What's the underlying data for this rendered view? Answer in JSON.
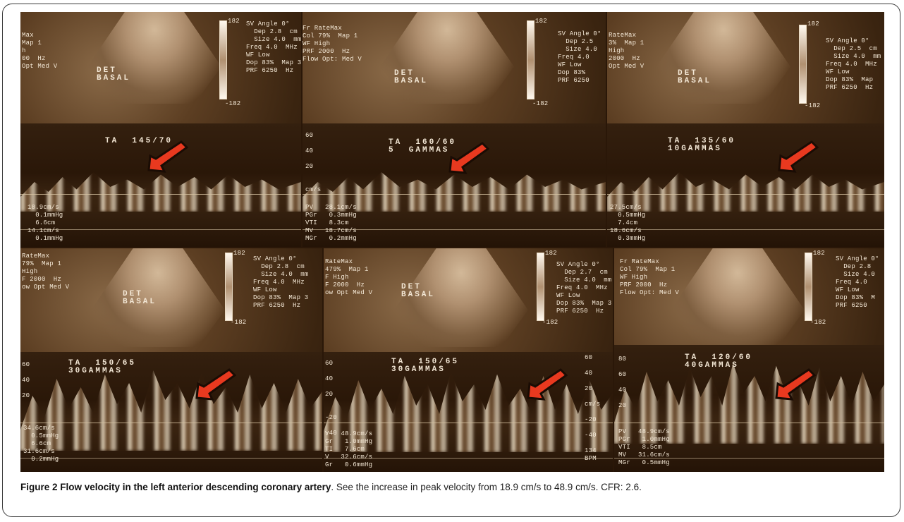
{
  "figure": {
    "caption_label": "Figure 2",
    "caption_title": "Flow velocity in the left anterior descending coronary artery",
    "caption_text": ". See the increase in peak velocity from 18.9 cm/s to 48.9 cm/s. CFR: 2.6."
  },
  "panels": [
    {
      "header_left": "Max\nMap 1\nh\n00  Hz\nOpt Med V",
      "header_right": "SV Angle 0°\n  Dep 2.8  cm\n  Size 4.0  mm\nFreq 4.0  MHz\nWF Low\nDop 83%  Map 3\nPRF 6250  Hz",
      "scale_top": "182",
      "scale_bottom": "-182",
      "sector_label": "DET\nBASAL",
      "ta_label": "TA  145/70",
      "meas": "18.9cm/s\n  0.1mmHg\n  6.6cm\n14.1cm/s\n  0.1mmHg",
      "axis_left": "",
      "axis_right": ""
    },
    {
      "header_left": "Fr RateMax\nCol 79%  Map 1\nWF High\nPRF 2000  Hz\nFlow Opt: Med V",
      "header_right": "SV Angle 0°\n  Dep 2.5\n  Size 4.0\nFreq 4.0\nWF Low\nDop 83%\nPRF 6250",
      "scale_top": "182",
      "scale_bottom": "-182",
      "sector_label": "DET\nBASAL",
      "ta_label": "TA  160/60\n5  GAMMAS",
      "meas": "PV   28.1cm/s\nPGr   0.3mmHg\nVTI   8.3cm\nMV   18.7cm/s\nMGr   0.2mmHg",
      "axis_left": "60\n\n40\n\n20\n\n\ncm/s",
      "axis_right": ""
    },
    {
      "header_left": "RateMax\n3%  Map 1\nHigh\n2000  Hz\nOpt Med V",
      "header_right": "SV Angle 0°\n  Dep 2.5  cm\n  Size 4.0  mm\nFreq 4.0  MHz\nWF Low\nDop 83%  Map\nPRF 6250  Hz",
      "scale_top": "182",
      "scale_bottom": "-182",
      "sector_label": "DET\nBASAL",
      "ta_label": "TA  135/60\n10GAMMAS",
      "meas": "27.5cm/s\n  0.5mmHg\n  7.4cm\n18.6cm/s\n  0.3mmHg",
      "axis_left": "",
      "axis_right": ""
    },
    {
      "header_left": "RateMax\n79%  Map 1\nHigh\nF 2000  Hz\now Opt Med V",
      "header_right": "SV Angle 0°\n  Dep 2.8  cm\n  Size 4.0  mm\nFreq 4.0  MHz\nWF Low\nDop 83%  Map 3\nPRF 6250  Hz",
      "scale_top": "182",
      "scale_bottom": "-182",
      "sector_label": "DET\nBASAL",
      "ta_label": "TA  150/65\n30GAMMAS",
      "meas": "34.6cm/s\n  0.5mmHg\n  6.6cm\n31.6cm/s\n  0.2mmHg",
      "axis_left": "60\n\n40\n\n20\n\n\n\n\n\n",
      "axis_right": ""
    },
    {
      "header_left": "RateMax\n479%  Map 1\nF High\nF 2000  Hz\now Opt Med V",
      "header_right": "SV Angle 0°\n  Dep 2.7  cm\n  Size 4.0  mm\nFreq 4.0  MHz\nWF Low\nDop 83%  Map 3\nPRF 6250  Hz",
      "scale_top": "182",
      "scale_bottom": "-182",
      "sector_label": "DET\nBASAL",
      "ta_label": "TA  150/65\n30GAMMAS",
      "meas": "V   48.9cm/s\nGr   1.0mmHg\nTI   7.6cm\nV   32.6cm/s\nGr   0.6mmHg",
      "axis_left": "60\n\n40\n\n20\n\n\n-20\n\n-40",
      "axis_right": "60\n\n40\n\n20\n\ncm/s\n\n-20\n\n-40\n\n134\nBPM"
    },
    {
      "header_left": "Fr RateMax\nCol 79%  Map 1\nWF High\nPRF 2000  Hz\nFlow Opt: Med V",
      "header_right": "SV Angle 0°\n  Dep 2.8\n  Size 4.0\nFreq 4.0\nWF Low\nDop 83%  M\nPRF 6250",
      "scale_top": "182",
      "scale_bottom": "-182",
      "sector_label": "DET\nBASAL",
      "ta_label": "TA  120/60\n40GAMMAS",
      "meas": "PV   48.9cm/s\nPGr   1.0mmHg\nVTI   8.5cm\nMV   31.6cm/s\nMGr   0.5mmHg",
      "axis_left": "80\n\n60\n\n40\n\n20\n\n",
      "axis_right": ""
    }
  ],
  "colors": {
    "arrow_fill": "#e8391f",
    "arrow_outline": "#1a0c04",
    "panel_text": "#f4e8d6",
    "background_tone": "#2a1708"
  }
}
